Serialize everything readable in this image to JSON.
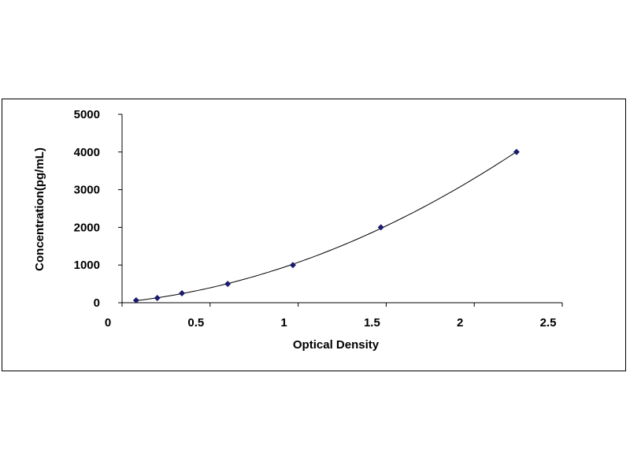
{
  "chart_data": {
    "type": "scatter",
    "title": "",
    "xlabel": "Optical Density",
    "ylabel": "Concentration(pg/mL)",
    "xlim": [
      0,
      2.5
    ],
    "ylim": [
      0,
      5000
    ],
    "x_ticks": [
      "0",
      "0.5",
      "1",
      "1.5",
      "2",
      "2.5"
    ],
    "y_ticks": [
      "0",
      "1000",
      "2000",
      "3000",
      "4000",
      "5000"
    ],
    "grid": false,
    "legend": "none",
    "series": [
      {
        "x": [
          0.08,
          0.2,
          0.34,
          0.6,
          0.97,
          1.47,
          2.24
        ],
        "y": [
          62.5,
          125,
          250,
          500,
          1000,
          2000,
          4000
        ],
        "marker": "diamond",
        "trendline": "polynomial"
      }
    ],
    "colors": {
      "marker": "#1a1a6e",
      "line": "#000000",
      "axis": "#000000"
    }
  }
}
